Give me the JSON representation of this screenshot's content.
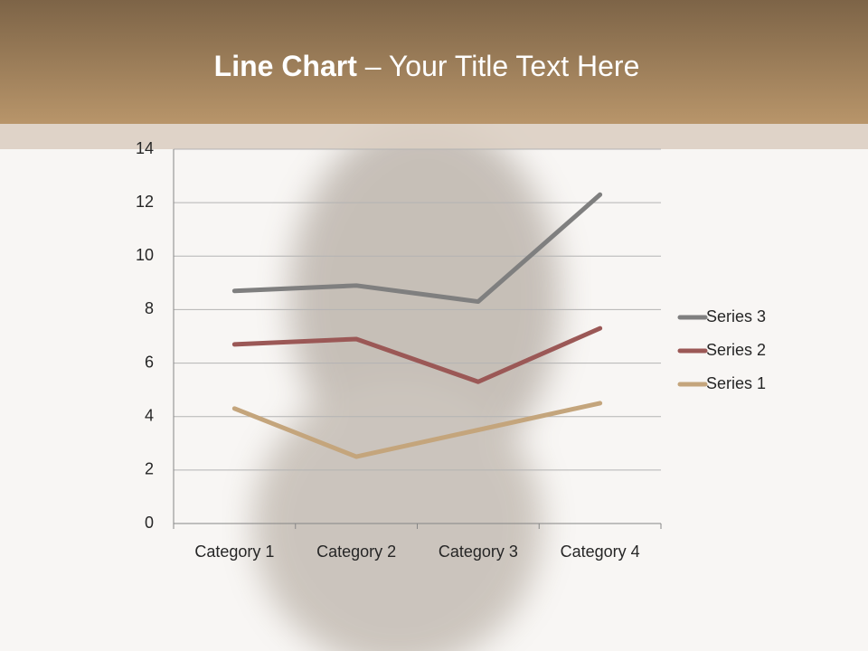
{
  "chart_data": {
    "type": "line",
    "stacked": true,
    "title": "Line Chart",
    "subtitle": "– Your Title Text Here",
    "categories": [
      "Category 1",
      "Category 2",
      "Category 3",
      "Category 4"
    ],
    "series": [
      {
        "name": "Series 1",
        "color": "#c4a57c",
        "values": [
          4.3,
          2.5,
          3.5,
          4.5
        ]
      },
      {
        "name": "Series 2",
        "color": "#9b5856",
        "values": [
          2.4,
          4.4,
          1.8,
          2.8
        ]
      },
      {
        "name": "Series 3",
        "color": "#7f7f7f",
        "values": [
          2,
          2,
          3,
          5
        ]
      }
    ],
    "ylim": [
      0,
      14
    ],
    "yticks": [
      0,
      2,
      4,
      6,
      8,
      10,
      12,
      14
    ],
    "grid": true,
    "legend": "right"
  }
}
